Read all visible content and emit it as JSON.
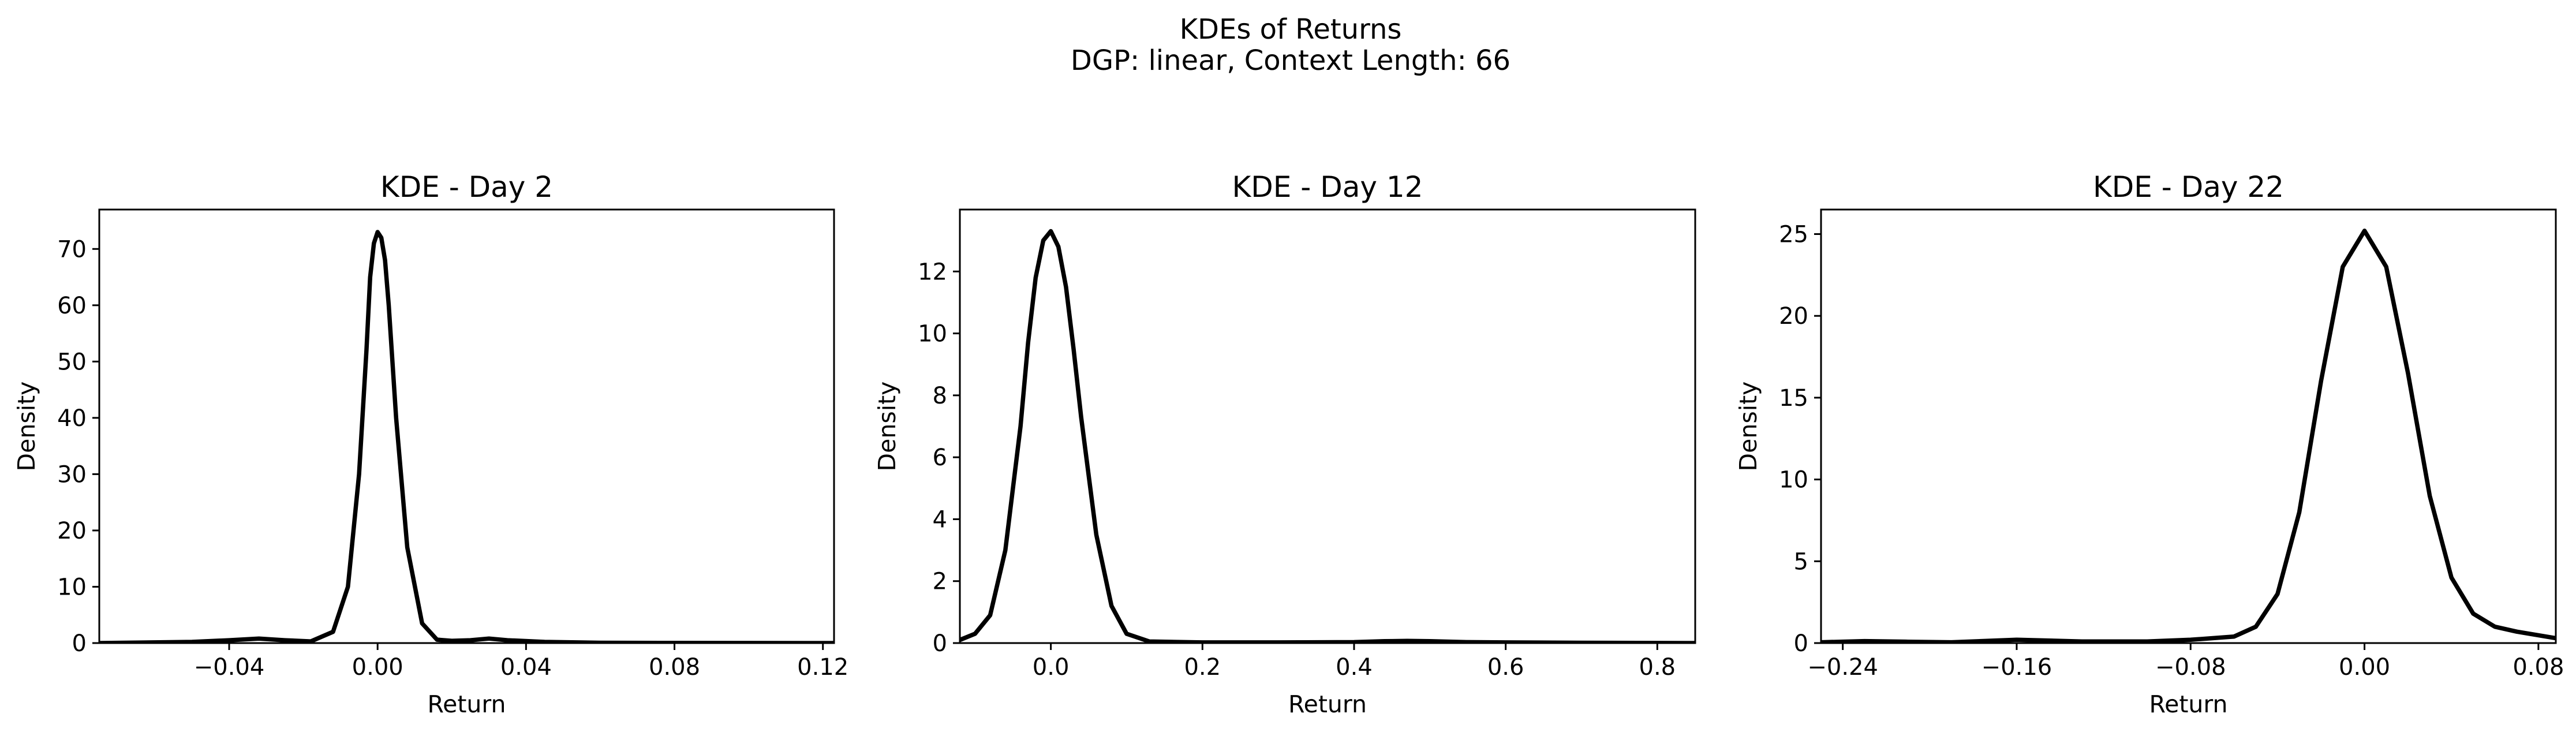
{
  "figure": {
    "title_line1": "KDEs of Returns",
    "title_line2": "DGP: linear, Context Length: 66"
  },
  "chart_data": [
    {
      "type": "line",
      "title": "KDE - Day 2",
      "xlabel": "Return",
      "ylabel": "Density",
      "xlim": [
        -0.075,
        0.123
      ],
      "ylim": [
        0,
        77
      ],
      "xticks": [
        -0.04,
        0.0,
        0.04,
        0.08,
        0.12
      ],
      "xtick_labels": [
        "−0.04",
        "0.00",
        "0.04",
        "0.08",
        "0.12"
      ],
      "yticks": [
        0,
        10,
        20,
        30,
        40,
        50,
        60,
        70
      ],
      "ytick_labels": [
        "0",
        "10",
        "20",
        "30",
        "40",
        "50",
        "60",
        "70"
      ],
      "grid": false,
      "series": [
        {
          "color": "#000000",
          "x": [
            -0.075,
            -0.05,
            -0.04,
            -0.032,
            -0.025,
            -0.018,
            -0.012,
            -0.008,
            -0.005,
            -0.003,
            -0.002,
            -0.001,
            0.0,
            0.001,
            0.002,
            0.003,
            0.005,
            0.008,
            0.012,
            0.016,
            0.02,
            0.025,
            0.03,
            0.035,
            0.045,
            0.06,
            0.08,
            0.1,
            0.123
          ],
          "y": [
            0.0,
            0.2,
            0.5,
            0.8,
            0.5,
            0.3,
            2.0,
            10.0,
            30.0,
            52.0,
            65.0,
            71.0,
            73.0,
            72.0,
            68.0,
            60.0,
            40.0,
            17.0,
            3.5,
            0.6,
            0.4,
            0.5,
            0.8,
            0.5,
            0.2,
            0.05,
            0.02,
            0.01,
            0.0
          ]
        }
      ]
    },
    {
      "type": "line",
      "title": "KDE - Day 12",
      "xlabel": "Return",
      "ylabel": "Density",
      "xlim": [
        -0.12,
        0.85
      ],
      "ylim": [
        0,
        14
      ],
      "xticks": [
        0.0,
        0.2,
        0.4,
        0.6,
        0.8
      ],
      "xtick_labels": [
        "0.0",
        "0.2",
        "0.4",
        "0.6",
        "0.8"
      ],
      "yticks": [
        0,
        2,
        4,
        6,
        8,
        10,
        12
      ],
      "ytick_labels": [
        "0",
        "2",
        "4",
        "6",
        "8",
        "10",
        "12"
      ],
      "grid": false,
      "series": [
        {
          "color": "#000000",
          "x": [
            -0.12,
            -0.1,
            -0.08,
            -0.06,
            -0.04,
            -0.03,
            -0.02,
            -0.01,
            0.0,
            0.01,
            0.02,
            0.03,
            0.04,
            0.06,
            0.08,
            0.1,
            0.13,
            0.2,
            0.3,
            0.4,
            0.44,
            0.47,
            0.5,
            0.55,
            0.6,
            0.7,
            0.85
          ],
          "y": [
            0.1,
            0.3,
            0.9,
            3.0,
            7.0,
            9.7,
            11.8,
            13.0,
            13.3,
            12.8,
            11.5,
            9.5,
            7.3,
            3.5,
            1.2,
            0.3,
            0.05,
            0.02,
            0.02,
            0.03,
            0.06,
            0.07,
            0.06,
            0.03,
            0.02,
            0.01,
            0.0
          ]
        }
      ]
    },
    {
      "type": "line",
      "title": "KDE - Day 22",
      "xlabel": "Return",
      "ylabel": "Density",
      "xlim": [
        -0.25,
        0.088
      ],
      "ylim": [
        0,
        26.5
      ],
      "xticks": [
        -0.24,
        -0.16,
        -0.08,
        0.0,
        0.08
      ],
      "xtick_labels": [
        "−0.24",
        "−0.16",
        "−0.08",
        "0.00",
        "0.08"
      ],
      "yticks": [
        0,
        5,
        10,
        15,
        20,
        25
      ],
      "ytick_labels": [
        "0",
        "5",
        "10",
        "15",
        "20",
        "25"
      ],
      "grid": false,
      "series": [
        {
          "color": "#000000",
          "x": [
            -0.25,
            -0.23,
            -0.21,
            -0.19,
            -0.16,
            -0.13,
            -0.1,
            -0.08,
            -0.06,
            -0.05,
            -0.04,
            -0.03,
            -0.02,
            -0.01,
            0.0,
            0.01,
            0.02,
            0.03,
            0.04,
            0.05,
            0.06,
            0.07,
            0.088
          ],
          "y": [
            0.05,
            0.12,
            0.08,
            0.05,
            0.2,
            0.1,
            0.1,
            0.2,
            0.4,
            1.0,
            3.0,
            8.0,
            16.0,
            23.0,
            25.2,
            23.0,
            16.5,
            9.0,
            4.0,
            1.8,
            1.0,
            0.7,
            0.3
          ]
        }
      ]
    }
  ]
}
